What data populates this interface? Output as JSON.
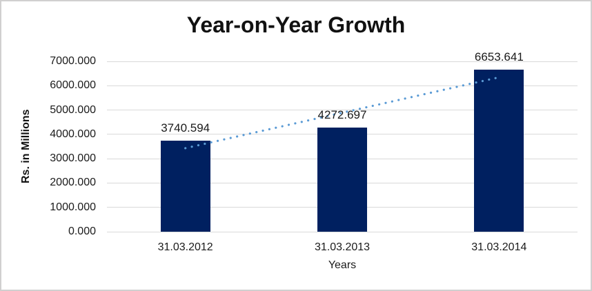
{
  "window": {
    "background_color": "#ffffff",
    "border_color": "#d0cfcf"
  },
  "chart_data": {
    "type": "bar",
    "title": "Year-on-Year Growth",
    "categories": [
      "31.03.2012",
      "31.03.2013",
      "31.03.2014"
    ],
    "values": [
      3740.594,
      4272.697,
      6653.641
    ],
    "data_labels": [
      "3740.594",
      "4272.697",
      "6653.641"
    ],
    "xlabel": "Years",
    "ylabel": "Rs. in Millions",
    "ylim": [
      0,
      7000
    ],
    "ytick_step": 1000,
    "ytick_labels": [
      "0.000",
      "1000.000",
      "2000.000",
      "3000.000",
      "4000.000",
      "5000.000",
      "6000.000",
      "7000.000"
    ],
    "grid": true,
    "legend": false,
    "bar_color": "#002060",
    "gridline_color": "#d9d9d9",
    "text_color": "#1a1a1a",
    "trendline": {
      "type": "linear",
      "style": "dotted",
      "color": "#5b9bd5",
      "start_value": 3432.5,
      "end_value": 6345.5
    }
  }
}
